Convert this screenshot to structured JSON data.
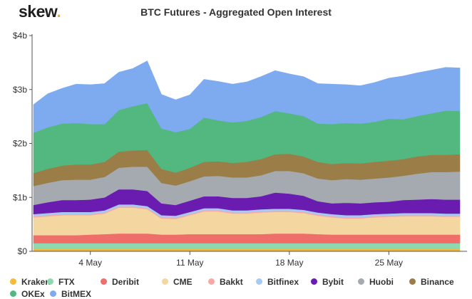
{
  "brand": {
    "name": "skew",
    "dot": "."
  },
  "chart_data": {
    "type": "area",
    "stacked": true,
    "title": "BTC Futures - Aggregated Open Interest",
    "xlabel": "",
    "ylabel": "",
    "y_unit": "USD billions",
    "ylim": [
      0,
      4
    ],
    "y_ticks": [
      0,
      1,
      2,
      3,
      4
    ],
    "y_tick_labels": [
      "$0",
      "$1b",
      "$2b",
      "$3b",
      "$4b"
    ],
    "x_ticks": [
      {
        "day": 4,
        "label": "4 May"
      },
      {
        "day": 11,
        "label": "11 May"
      },
      {
        "day": 18,
        "label": "18 May"
      },
      {
        "day": 25,
        "label": "25 May"
      }
    ],
    "x_range": [
      -0.1,
      30.5
    ],
    "x": [
      0,
      1,
      2,
      3,
      4,
      5,
      6,
      7,
      8,
      9,
      10,
      11,
      12,
      13,
      14,
      15,
      16,
      17,
      18,
      19,
      20,
      21,
      22,
      23,
      24,
      25,
      26,
      27,
      28,
      29,
      30
    ],
    "grid": false,
    "legend_position": "bottom",
    "series": [
      {
        "name": "Kraken",
        "color": "#f5b93b",
        "values": [
          0.05,
          0.05,
          0.05,
          0.05,
          0.05,
          0.05,
          0.05,
          0.05,
          0.05,
          0.05,
          0.05,
          0.05,
          0.05,
          0.05,
          0.05,
          0.05,
          0.05,
          0.05,
          0.05,
          0.05,
          0.05,
          0.05,
          0.05,
          0.05,
          0.05,
          0.05,
          0.05,
          0.05,
          0.05,
          0.05,
          0.05
        ]
      },
      {
        "name": "FTX",
        "color": "#8fd9b0",
        "values": [
          0.1,
          0.1,
          0.1,
          0.1,
          0.1,
          0.1,
          0.1,
          0.1,
          0.1,
          0.1,
          0.1,
          0.1,
          0.1,
          0.1,
          0.1,
          0.1,
          0.1,
          0.1,
          0.1,
          0.1,
          0.1,
          0.1,
          0.1,
          0.1,
          0.1,
          0.1,
          0.1,
          0.1,
          0.1,
          0.1,
          0.1
        ]
      },
      {
        "name": "Deribit",
        "color": "#f06e6a",
        "values": [
          0.15,
          0.15,
          0.15,
          0.15,
          0.16,
          0.17,
          0.18,
          0.18,
          0.18,
          0.16,
          0.16,
          0.17,
          0.17,
          0.17,
          0.17,
          0.17,
          0.17,
          0.18,
          0.18,
          0.18,
          0.17,
          0.16,
          0.16,
          0.16,
          0.16,
          0.16,
          0.16,
          0.16,
          0.16,
          0.16,
          0.16
        ]
      },
      {
        "name": "CME",
        "color": "#f3d6a0",
        "values": [
          0.33,
          0.35,
          0.37,
          0.37,
          0.36,
          0.38,
          0.48,
          0.48,
          0.45,
          0.3,
          0.29,
          0.35,
          0.42,
          0.42,
          0.38,
          0.38,
          0.4,
          0.4,
          0.4,
          0.38,
          0.34,
          0.32,
          0.3,
          0.3,
          0.32,
          0.33,
          0.34,
          0.34,
          0.34,
          0.33,
          0.33
        ]
      },
      {
        "name": "Bakkt",
        "color": "#f8a8a5",
        "values": [
          0.02,
          0.02,
          0.02,
          0.02,
          0.02,
          0.02,
          0.02,
          0.02,
          0.02,
          0.02,
          0.02,
          0.02,
          0.02,
          0.02,
          0.02,
          0.02,
          0.02,
          0.02,
          0.02,
          0.02,
          0.02,
          0.02,
          0.02,
          0.02,
          0.02,
          0.02,
          0.02,
          0.02,
          0.02,
          0.02,
          0.02
        ]
      },
      {
        "name": "Bitfinex",
        "color": "#a9c9f5",
        "values": [
          0.04,
          0.04,
          0.04,
          0.04,
          0.04,
          0.04,
          0.04,
          0.04,
          0.04,
          0.04,
          0.04,
          0.04,
          0.04,
          0.04,
          0.04,
          0.04,
          0.04,
          0.04,
          0.04,
          0.04,
          0.04,
          0.04,
          0.04,
          0.04,
          0.04,
          0.04,
          0.04,
          0.04,
          0.04,
          0.04,
          0.04
        ]
      },
      {
        "name": "Bybit",
        "color": "#6a1bb0",
        "values": [
          0.17,
          0.2,
          0.22,
          0.22,
          0.23,
          0.24,
          0.28,
          0.28,
          0.28,
          0.22,
          0.2,
          0.21,
          0.22,
          0.22,
          0.23,
          0.23,
          0.24,
          0.3,
          0.28,
          0.26,
          0.21,
          0.2,
          0.23,
          0.22,
          0.22,
          0.22,
          0.24,
          0.25,
          0.26,
          0.26,
          0.26
        ]
      },
      {
        "name": "Huobi",
        "color": "#a5a9b0",
        "values": [
          0.35,
          0.36,
          0.37,
          0.38,
          0.37,
          0.38,
          0.4,
          0.42,
          0.45,
          0.38,
          0.36,
          0.36,
          0.37,
          0.38,
          0.38,
          0.38,
          0.39,
          0.4,
          0.42,
          0.42,
          0.42,
          0.43,
          0.44,
          0.44,
          0.44,
          0.45,
          0.45,
          0.48,
          0.5,
          0.51,
          0.52
        ]
      },
      {
        "name": "Binance",
        "color": "#9a7d47",
        "values": [
          0.24,
          0.26,
          0.27,
          0.28,
          0.28,
          0.28,
          0.3,
          0.3,
          0.31,
          0.26,
          0.24,
          0.25,
          0.27,
          0.27,
          0.27,
          0.29,
          0.3,
          0.31,
          0.32,
          0.31,
          0.31,
          0.3,
          0.3,
          0.3,
          0.31,
          0.31,
          0.31,
          0.32,
          0.32,
          0.32,
          0.32
        ]
      },
      {
        "name": "OKEx",
        "color": "#52b880",
        "values": [
          0.75,
          0.77,
          0.78,
          0.77,
          0.75,
          0.7,
          0.77,
          0.82,
          0.87,
          0.75,
          0.75,
          0.72,
          0.82,
          0.76,
          0.75,
          0.76,
          0.78,
          0.8,
          0.75,
          0.75,
          0.71,
          0.74,
          0.74,
          0.74,
          0.74,
          0.78,
          0.74,
          0.75,
          0.77,
          0.82,
          0.8
        ]
      },
      {
        "name": "BitMEX",
        "color": "#7eaaf0",
        "values": [
          0.52,
          0.62,
          0.65,
          0.72,
          0.73,
          0.75,
          0.7,
          0.7,
          0.78,
          0.63,
          0.6,
          0.63,
          0.71,
          0.72,
          0.71,
          0.72,
          0.75,
          0.75,
          0.73,
          0.73,
          0.74,
          0.74,
          0.71,
          0.7,
          0.73,
          0.75,
          0.8,
          0.8,
          0.8,
          0.8,
          0.8
        ]
      }
    ]
  }
}
